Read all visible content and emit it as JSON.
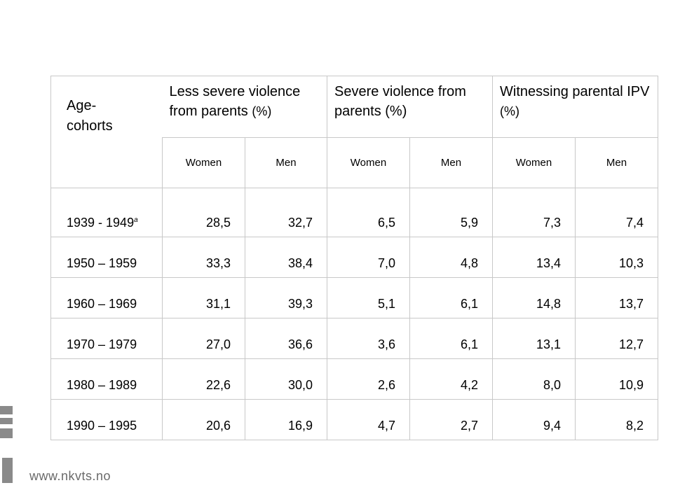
{
  "table": {
    "age_header": "Age-\ncohorts",
    "groups": [
      {
        "label": "Less severe violence from parents",
        "pct": "(%)"
      },
      {
        "label": "Severe violence from parents (%)",
        "pct": ""
      },
      {
        "label": "Witnessing parental IPV",
        "pct": "(%)"
      }
    ],
    "sub_headers": [
      "Women",
      "Men",
      "Women",
      "Men",
      "Women",
      "Men"
    ],
    "rows": [
      {
        "cohort": "1939 - 1949",
        "note": "a",
        "values": [
          "28,5",
          "32,7",
          "6,5",
          "5,9",
          "7,3",
          "7,4"
        ]
      },
      {
        "cohort": "1950 – 1959",
        "note": "",
        "values": [
          "33,3",
          "38,4",
          "7,0",
          "4,8",
          "13,4",
          "10,3"
        ]
      },
      {
        "cohort": "1960 – 1969",
        "note": "",
        "values": [
          "31,1",
          "39,3",
          "5,1",
          "6,1",
          "14,8",
          "13,7"
        ]
      },
      {
        "cohort": "1970 – 1979",
        "note": "",
        "values": [
          "27,0",
          "36,6",
          "3,6",
          "6,1",
          "13,1",
          "12,7"
        ]
      },
      {
        "cohort": "1980 – 1989",
        "note": "",
        "values": [
          "22,6",
          "30,0",
          "2,6",
          "4,2",
          "8,0",
          "10,9"
        ]
      },
      {
        "cohort": "1990 – 1995",
        "note": "",
        "values": [
          "20,6",
          "16,9",
          "4,7",
          "2,7",
          "9,4",
          "8,2"
        ]
      }
    ]
  },
  "footer": {
    "url": "www.nkvts.no",
    "logo_icon": "nkvts-bars-logo"
  },
  "colors": {
    "border": "#c8c8c8",
    "brand_gray": "#8a8a8a",
    "footer_text": "#6a6a6a"
  }
}
